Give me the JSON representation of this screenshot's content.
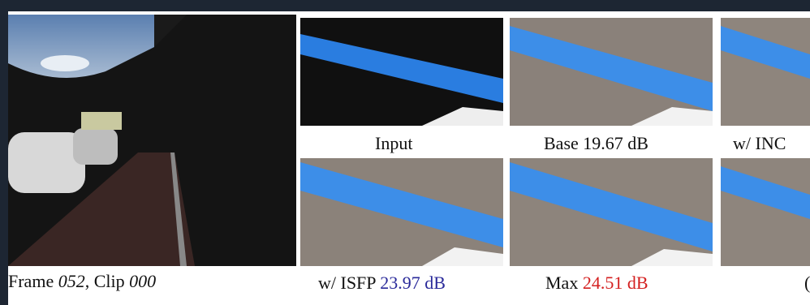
{
  "figure": {
    "main_caption": {
      "frame_word": "Frame",
      "frame": "052",
      "clip_word": ", Clip",
      "clip": "000"
    },
    "panels": [
      {
        "label": "Input"
      },
      {
        "label": "Base 19.67 dB"
      },
      {
        "label": "w/ INC"
      },
      {
        "label": "w/ ISFP",
        "score": "23.97 dB"
      },
      {
        "label": "Max",
        "score": "24.51 dB"
      },
      {
        "label": "("
      }
    ]
  }
}
